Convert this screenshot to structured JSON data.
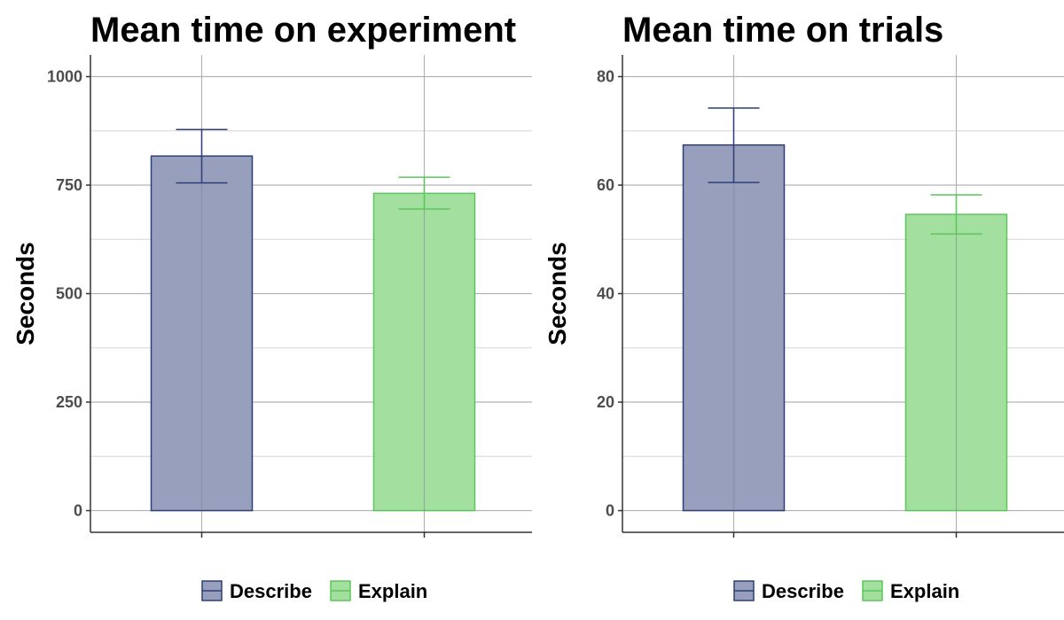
{
  "chart_data": [
    {
      "type": "bar",
      "title": "Mean time on experiment",
      "ylabel": "Seconds",
      "xlabel": "",
      "categories": [
        "Describe",
        "Explain"
      ],
      "values": [
        817,
        731
      ],
      "error_low": [
        755,
        695
      ],
      "error_high": [
        878,
        768
      ],
      "ylim": [
        -50,
        1050
      ],
      "yticks": [
        0,
        250,
        500,
        750,
        1000
      ],
      "grid": true,
      "legend": {
        "position": "bottom",
        "entries": [
          "Describe",
          "Explain"
        ]
      }
    },
    {
      "type": "bar",
      "title": "Mean time on trials",
      "ylabel": "Seconds",
      "xlabel": "",
      "categories": [
        "Describe",
        "Explain"
      ],
      "values": [
        67.4,
        54.6
      ],
      "error_low": [
        60.5,
        51.0
      ],
      "error_high": [
        74.2,
        58.2
      ],
      "ylim": [
        -4,
        84
      ],
      "yticks": [
        0,
        20,
        40,
        60,
        80
      ],
      "grid": true,
      "legend": {
        "position": "bottom",
        "entries": [
          "Describe",
          "Explain"
        ]
      }
    }
  ],
  "colors": {
    "describe_fill": "#979fbc",
    "describe_stroke": "#2e3f78",
    "explain_fill": "#a3e0a0",
    "explain_stroke": "#5cc65c",
    "grid_major": "#b3b3b3",
    "grid_minor": "#d6d6d6",
    "axis": "#333333"
  }
}
